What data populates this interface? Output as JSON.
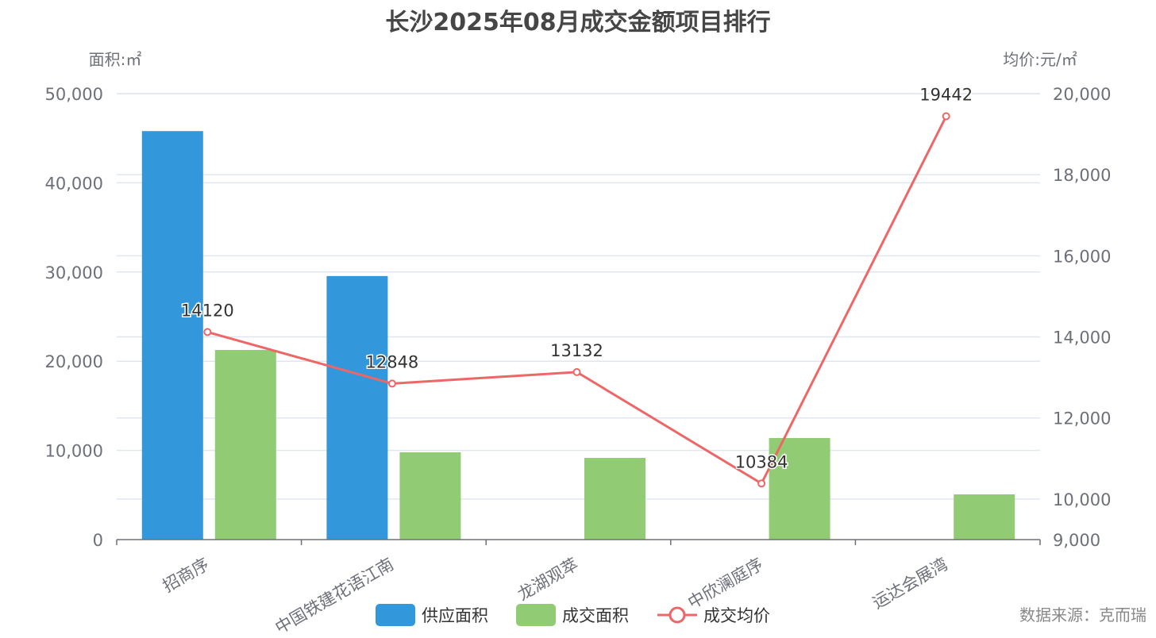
{
  "chart_data": {
    "type": "bar",
    "title": "长沙2025年08月成交金额项目排行",
    "ylabel_left": "面积:㎡",
    "ylabel_right": "均价:元/㎡",
    "source": "数据来源：克而瑞",
    "categories": [
      "招商序",
      "中国铁建花语江南",
      "龙湖观萃",
      "中欣澜庭序",
      "运达会展湾"
    ],
    "series": [
      {
        "name": "供应面积",
        "type": "bar",
        "axis": "left",
        "color": "#3398DB",
        "values": [
          45800,
          29550,
          0,
          0,
          0
        ]
      },
      {
        "name": "成交面积",
        "type": "bar",
        "axis": "left",
        "color": "#91CB74",
        "values": [
          21260,
          9790,
          9160,
          11390,
          5070
        ]
      },
      {
        "name": "成交均价",
        "type": "line",
        "axis": "right",
        "color": "#EE6666",
        "values": [
          14120,
          12848,
          13132,
          10384,
          19442
        ]
      }
    ],
    "ylim_left": [
      0,
      50000
    ],
    "yticks_left": [
      0,
      10000,
      20000,
      30000,
      40000,
      50000
    ],
    "ytick_labels_left": [
      "0",
      "10,000",
      "20,000",
      "30,000",
      "40,000",
      "50,000"
    ],
    "ylim_right": [
      9000,
      20000
    ],
    "yticks_right": [
      9000,
      10000,
      12000,
      14000,
      16000,
      18000,
      20000
    ],
    "ytick_labels_right": [
      "9,000",
      "10,000",
      "12,000",
      "14,000",
      "16,000",
      "18,000",
      "20,000"
    ],
    "grid": true,
    "legend": "bottom-center"
  }
}
